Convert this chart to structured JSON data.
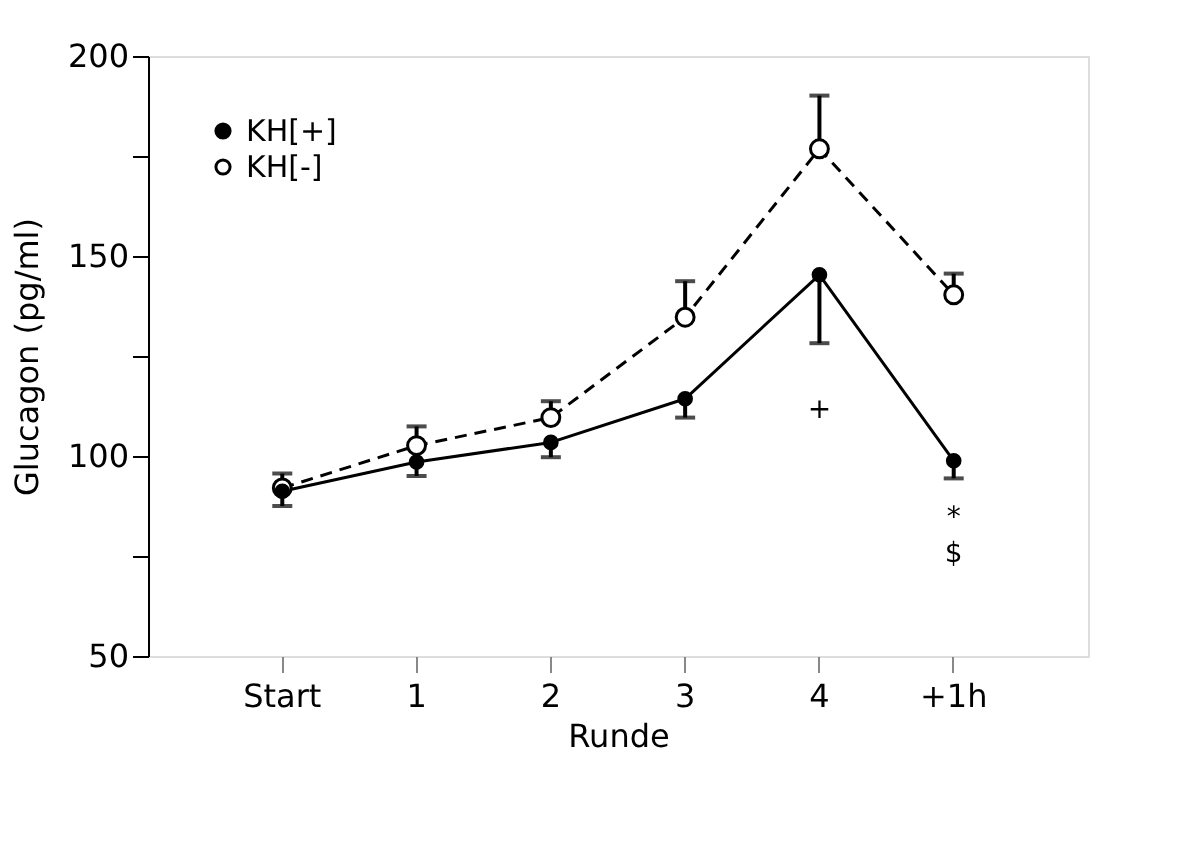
{
  "chart_data": {
    "type": "line",
    "xlabel": "Runde",
    "ylabel": "Glucagon (pg/ml)",
    "categories": [
      "Start",
      "1",
      "2",
      "3",
      "4",
      "+1h"
    ],
    "series": [
      {
        "name": "KH[+]",
        "color": "#000000",
        "line_style": "solid",
        "values": [
          91.2,
          98.5,
          103.4,
          114.3,
          145.3,
          98.8
        ],
        "errors": [
          [
            87.5,
            91.2
          ],
          [
            95,
            98.5
          ],
          [
            99.7,
            103.4
          ],
          [
            109.6,
            114.3
          ],
          [
            128.2,
            145.3
          ],
          [
            94.4,
            98.8
          ]
        ]
      },
      {
        "name": "KH[-]",
        "color": "#000000",
        "line_style": "dashed",
        "values": [
          92,
          102.6,
          109.6,
          134.7,
          176.8,
          140.3
        ],
        "errors": [
          [
            92,
            95.6
          ],
          [
            102.6,
            107.4
          ],
          [
            109.6,
            113.7
          ],
          [
            134.7,
            143.7
          ],
          [
            176.8,
            190.1
          ],
          [
            140.3,
            145.6
          ]
        ]
      }
    ],
    "ylim": [
      50,
      200
    ],
    "yticks": [
      50,
      {
        "value": 75,
        "label": null
      },
      100,
      {
        "value": 125,
        "label": null
      },
      150,
      {
        "value": 175,
        "label": null
      },
      200
    ],
    "marker": "circle",
    "legend": "top left",
    "grid": false,
    "annotations": [
      "+",
      "*",
      "$"
    ]
  }
}
